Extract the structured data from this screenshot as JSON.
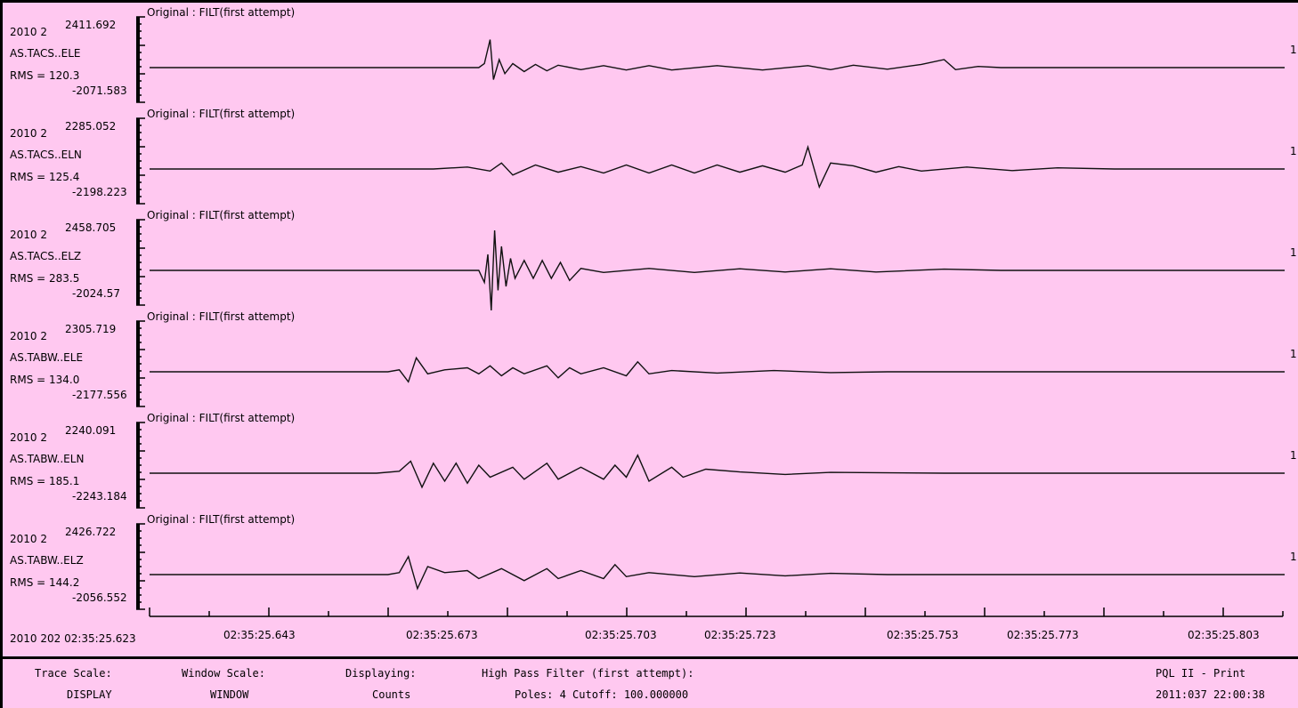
{
  "window": {
    "title": "PQL II - Print",
    "datetime": "2011:037 22:00:38"
  },
  "traces": [
    {
      "header": "Original : FILT(first attempt)",
      "date_prefix": "2010 2",
      "max": "2411.692",
      "station": "AS.TACS..ELE",
      "rms": "RMS = 120.3",
      "min": "-2071.583",
      "scale_mark": "1",
      "wave": [
        [
          0.0,
          0
        ],
        [
          0.29,
          0
        ],
        [
          0.295,
          0.1
        ],
        [
          0.3,
          0.7
        ],
        [
          0.303,
          -0.3
        ],
        [
          0.308,
          0.2
        ],
        [
          0.313,
          -0.15
        ],
        [
          0.32,
          0.1
        ],
        [
          0.33,
          -0.1
        ],
        [
          0.34,
          0.08
        ],
        [
          0.35,
          -0.08
        ],
        [
          0.36,
          0.06
        ],
        [
          0.38,
          -0.05
        ],
        [
          0.4,
          0.05
        ],
        [
          0.42,
          -0.06
        ],
        [
          0.44,
          0.05
        ],
        [
          0.46,
          -0.06
        ],
        [
          0.5,
          0.05
        ],
        [
          0.54,
          -0.06
        ],
        [
          0.58,
          0.05
        ],
        [
          0.6,
          -0.05
        ],
        [
          0.62,
          0.06
        ],
        [
          0.65,
          -0.04
        ],
        [
          0.68,
          0.08
        ],
        [
          0.7,
          0.2
        ],
        [
          0.71,
          -0.05
        ],
        [
          0.73,
          0.03
        ],
        [
          0.75,
          0
        ],
        [
          1.0,
          0
        ]
      ]
    },
    {
      "header": "Original : FILT(first attempt)",
      "date_prefix": "2010 2",
      "max": "2285.052",
      "station": "AS.TACS..ELN",
      "rms": "RMS = 125.4",
      "min": "-2198.223",
      "scale_mark": "1",
      "wave": [
        [
          0.0,
          0
        ],
        [
          0.25,
          0
        ],
        [
          0.28,
          0.05
        ],
        [
          0.3,
          -0.05
        ],
        [
          0.31,
          0.15
        ],
        [
          0.32,
          -0.15
        ],
        [
          0.34,
          0.1
        ],
        [
          0.36,
          -0.08
        ],
        [
          0.38,
          0.06
        ],
        [
          0.4,
          -0.1
        ],
        [
          0.42,
          0.1
        ],
        [
          0.44,
          -0.1
        ],
        [
          0.46,
          0.1
        ],
        [
          0.48,
          -0.1
        ],
        [
          0.5,
          0.1
        ],
        [
          0.52,
          -0.08
        ],
        [
          0.54,
          0.08
        ],
        [
          0.56,
          -0.08
        ],
        [
          0.575,
          0.1
        ],
        [
          0.58,
          0.55
        ],
        [
          0.59,
          -0.45
        ],
        [
          0.6,
          0.15
        ],
        [
          0.62,
          0.08
        ],
        [
          0.64,
          -0.08
        ],
        [
          0.66,
          0.06
        ],
        [
          0.68,
          -0.05
        ],
        [
          0.72,
          0.05
        ],
        [
          0.76,
          -0.04
        ],
        [
          0.8,
          0.03
        ],
        [
          0.85,
          0
        ],
        [
          1.0,
          0
        ]
      ]
    },
    {
      "header": "Original : FILT(first attempt)",
      "date_prefix": "2010 2",
      "max": "2458.705",
      "station": "AS.TACS..ELZ",
      "rms": "RMS = 283.5",
      "min": "-2024.57",
      "scale_mark": "1",
      "wave": [
        [
          0.0,
          0
        ],
        [
          0.29,
          0
        ],
        [
          0.295,
          -0.3
        ],
        [
          0.298,
          0.4
        ],
        [
          0.301,
          -1.0
        ],
        [
          0.304,
          1.0
        ],
        [
          0.307,
          -0.5
        ],
        [
          0.31,
          0.6
        ],
        [
          0.314,
          -0.4
        ],
        [
          0.318,
          0.3
        ],
        [
          0.322,
          -0.2
        ],
        [
          0.33,
          0.25
        ],
        [
          0.338,
          -0.2
        ],
        [
          0.346,
          0.25
        ],
        [
          0.354,
          -0.2
        ],
        [
          0.362,
          0.2
        ],
        [
          0.37,
          -0.25
        ],
        [
          0.38,
          0.05
        ],
        [
          0.4,
          -0.05
        ],
        [
          0.44,
          0.05
        ],
        [
          0.48,
          -0.05
        ],
        [
          0.52,
          0.04
        ],
        [
          0.56,
          -0.04
        ],
        [
          0.6,
          0.04
        ],
        [
          0.64,
          -0.04
        ],
        [
          0.7,
          0.03
        ],
        [
          0.75,
          0
        ],
        [
          1.0,
          0
        ]
      ]
    },
    {
      "header": "Original : FILT(first attempt)",
      "date_prefix": "2010 2",
      "max": "2305.719",
      "station": "AS.TABW..ELE",
      "rms": "RMS = 134.0",
      "min": "-2177.556",
      "scale_mark": "1",
      "wave": [
        [
          0.0,
          0
        ],
        [
          0.21,
          0
        ],
        [
          0.22,
          0.05
        ],
        [
          0.228,
          -0.25
        ],
        [
          0.235,
          0.35
        ],
        [
          0.245,
          -0.05
        ],
        [
          0.26,
          0.05
        ],
        [
          0.28,
          0.1
        ],
        [
          0.29,
          -0.05
        ],
        [
          0.3,
          0.15
        ],
        [
          0.31,
          -0.1
        ],
        [
          0.32,
          0.1
        ],
        [
          0.33,
          -0.05
        ],
        [
          0.35,
          0.15
        ],
        [
          0.36,
          -0.15
        ],
        [
          0.37,
          0.1
        ],
        [
          0.38,
          -0.05
        ],
        [
          0.4,
          0.1
        ],
        [
          0.42,
          -0.1
        ],
        [
          0.43,
          0.25
        ],
        [
          0.44,
          -0.05
        ],
        [
          0.46,
          0.03
        ],
        [
          0.5,
          -0.03
        ],
        [
          0.55,
          0.03
        ],
        [
          0.6,
          -0.02
        ],
        [
          0.65,
          0
        ],
        [
          1.0,
          0
        ]
      ]
    },
    {
      "header": "Original : FILT(first attempt)",
      "date_prefix": "2010 2",
      "max": "2240.091",
      "station": "AS.TABW..ELN",
      "rms": "RMS = 185.1",
      "min": "-2243.184",
      "scale_mark": "1",
      "wave": [
        [
          0.0,
          0
        ],
        [
          0.2,
          0
        ],
        [
          0.22,
          0.05
        ],
        [
          0.23,
          0.3
        ],
        [
          0.24,
          -0.35
        ],
        [
          0.25,
          0.25
        ],
        [
          0.26,
          -0.2
        ],
        [
          0.27,
          0.25
        ],
        [
          0.28,
          -0.25
        ],
        [
          0.29,
          0.2
        ],
        [
          0.3,
          -0.1
        ],
        [
          0.32,
          0.15
        ],
        [
          0.33,
          -0.15
        ],
        [
          0.35,
          0.25
        ],
        [
          0.36,
          -0.15
        ],
        [
          0.38,
          0.15
        ],
        [
          0.4,
          -0.15
        ],
        [
          0.41,
          0.2
        ],
        [
          0.42,
          -0.1
        ],
        [
          0.43,
          0.45
        ],
        [
          0.44,
          -0.2
        ],
        [
          0.46,
          0.15
        ],
        [
          0.47,
          -0.1
        ],
        [
          0.49,
          0.1
        ],
        [
          0.52,
          0.03
        ],
        [
          0.56,
          -0.03
        ],
        [
          0.6,
          0.02
        ],
        [
          0.7,
          0
        ],
        [
          1.0,
          0
        ]
      ]
    },
    {
      "header": "Original : FILT(first attempt)",
      "date_prefix": "2010 2",
      "max": "2426.722",
      "station": "AS.TABW..ELZ",
      "rms": "RMS = 144.2",
      "min": "-2056.552",
      "scale_mark": "1",
      "wave": [
        [
          0.0,
          0
        ],
        [
          0.21,
          0
        ],
        [
          0.22,
          0.05
        ],
        [
          0.228,
          0.45
        ],
        [
          0.236,
          -0.35
        ],
        [
          0.245,
          0.2
        ],
        [
          0.26,
          0.05
        ],
        [
          0.28,
          0.1
        ],
        [
          0.29,
          -0.1
        ],
        [
          0.31,
          0.15
        ],
        [
          0.33,
          -0.15
        ],
        [
          0.35,
          0.15
        ],
        [
          0.36,
          -0.1
        ],
        [
          0.38,
          0.1
        ],
        [
          0.4,
          -0.1
        ],
        [
          0.41,
          0.25
        ],
        [
          0.42,
          -0.05
        ],
        [
          0.44,
          0.05
        ],
        [
          0.48,
          -0.05
        ],
        [
          0.52,
          0.04
        ],
        [
          0.56,
          -0.03
        ],
        [
          0.6,
          0.03
        ],
        [
          0.65,
          0
        ],
        [
          1.0,
          0
        ]
      ]
    }
  ],
  "xaxis": {
    "start_label": "2010 202 02:35:25.623",
    "ticks": [
      {
        "label": "02:35:25.643"
      },
      {
        "label": "02:35:25.673"
      },
      {
        "label": "02:35:25.703"
      },
      {
        "label": "02:35:25.723"
      },
      {
        "label": "02:35:25.753"
      },
      {
        "label": "02:35:25.773"
      },
      {
        "label": "02:35:25.803"
      }
    ]
  },
  "footer": {
    "trace_scale_label": "Trace Scale:",
    "trace_scale_value": "DISPLAY",
    "window_scale_label": "Window Scale:",
    "window_scale_value": "WINDOW",
    "displaying_label": "Displaying:",
    "displaying_value": "Counts",
    "filter_label": "High Pass Filter (first attempt):",
    "filter_value": "Poles: 4  Cutoff: 100.000000"
  }
}
